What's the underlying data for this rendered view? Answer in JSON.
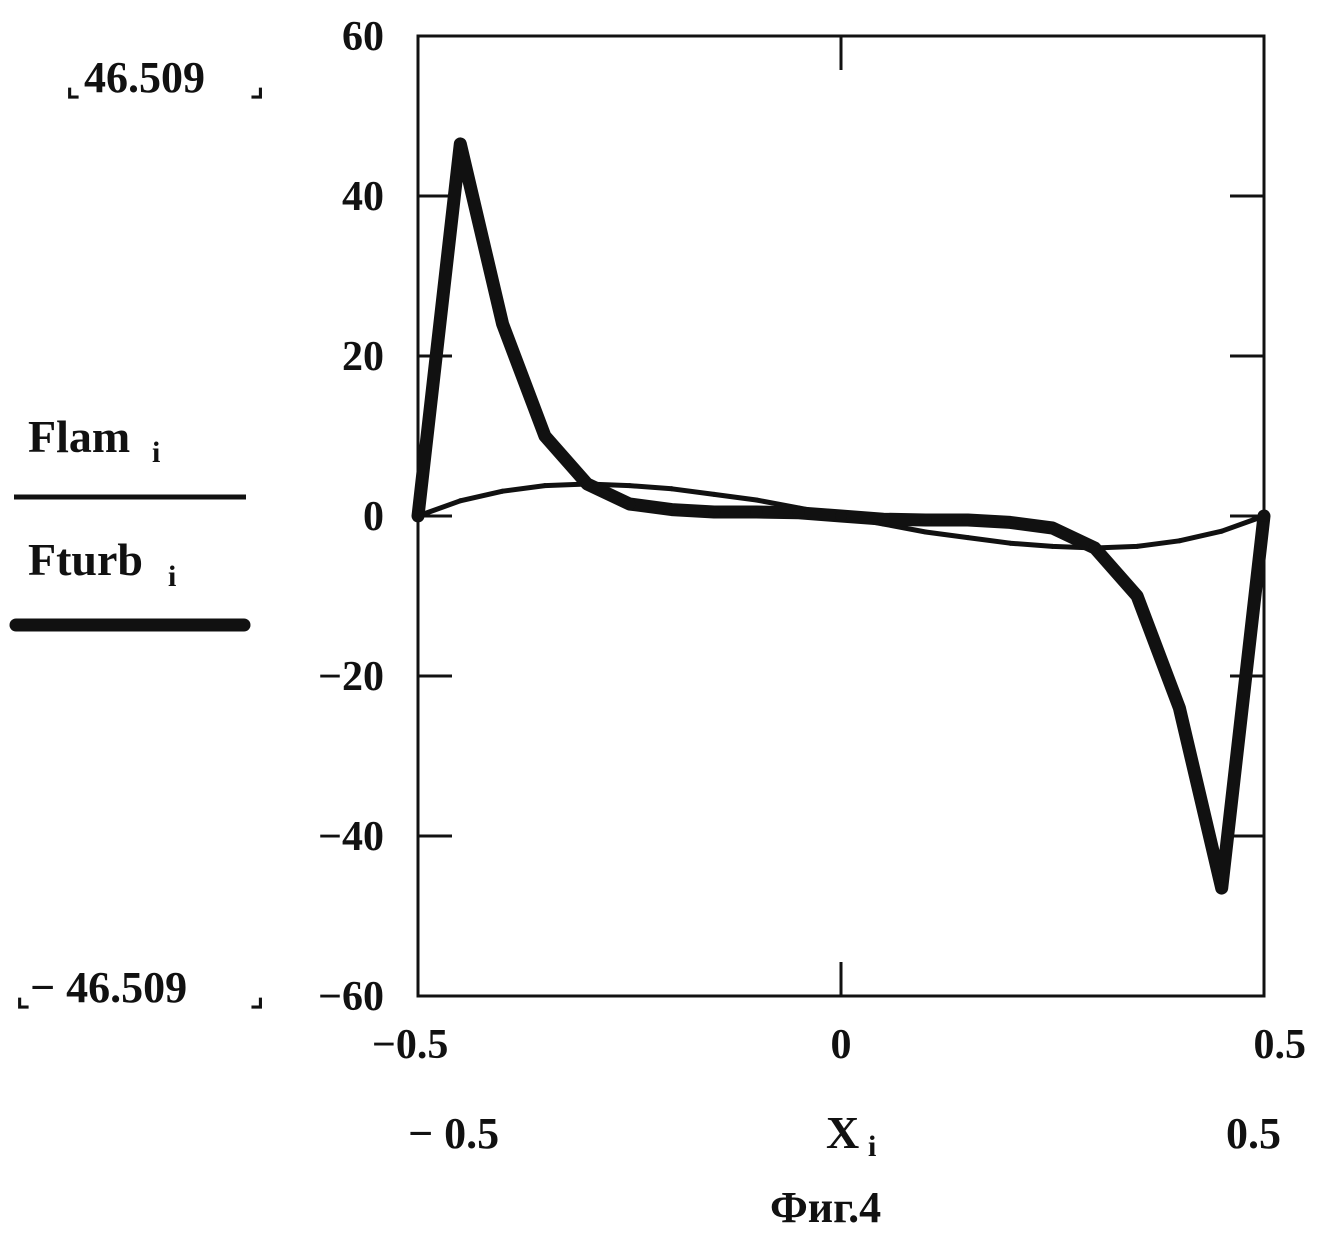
{
  "chart_data": {
    "type": "line",
    "caption": "Фиг.4",
    "xlabel": "X",
    "xlabel_sub": "i",
    "x_range_labels": {
      "min": "− 0.5",
      "max": "0.5"
    },
    "y_range_labels": {
      "max": "46.509",
      "min": "− 46.509"
    },
    "xlim": [
      -0.5,
      0.5
    ],
    "ylim": [
      -60,
      60
    ],
    "x_ticks": [
      {
        "value": -0.5,
        "label": "−0.5"
      },
      {
        "value": 0,
        "label": "0"
      },
      {
        "value": 0.5,
        "label": "0.5"
      }
    ],
    "y_ticks": [
      {
        "value": 60,
        "label": "60"
      },
      {
        "value": 40,
        "label": "40"
      },
      {
        "value": 20,
        "label": "20"
      },
      {
        "value": 0,
        "label": "0"
      },
      {
        "value": -20,
        "label": "−20"
      },
      {
        "value": -40,
        "label": "−40"
      },
      {
        "value": -60,
        "label": "−60"
      }
    ],
    "series": [
      {
        "name": "Flam",
        "name_sub": "i",
        "line_style": "thin",
        "color": "#111111",
        "x": [
          -0.5,
          -0.45,
          -0.4,
          -0.35,
          -0.3,
          -0.25,
          -0.2,
          -0.15,
          -0.1,
          -0.05,
          0,
          0.05,
          0.1,
          0.15,
          0.2,
          0.25,
          0.3,
          0.35,
          0.4,
          0.45,
          0.5
        ],
        "y": [
          0,
          1.9,
          3.1,
          3.8,
          4.0,
          3.8,
          3.4,
          2.7,
          2.0,
          1.0,
          0,
          -1.0,
          -2.0,
          -2.7,
          -3.4,
          -3.8,
          -4.0,
          -3.8,
          -3.1,
          -1.9,
          0
        ]
      },
      {
        "name": "Fturb",
        "name_sub": "i",
        "line_style": "thick",
        "color": "#111111",
        "x": [
          -0.5,
          -0.45,
          -0.4,
          -0.35,
          -0.3,
          -0.25,
          -0.2,
          -0.15,
          -0.1,
          -0.05,
          0,
          0.05,
          0.1,
          0.15,
          0.2,
          0.25,
          0.3,
          0.35,
          0.4,
          0.45,
          0.5
        ],
        "y": [
          0,
          46.509,
          24,
          10,
          4,
          1.5,
          0.8,
          0.5,
          0.5,
          0.4,
          0,
          -0.4,
          -0.5,
          -0.5,
          -0.8,
          -1.5,
          -4,
          -10,
          -24,
          -46.509,
          0
        ]
      }
    ]
  }
}
